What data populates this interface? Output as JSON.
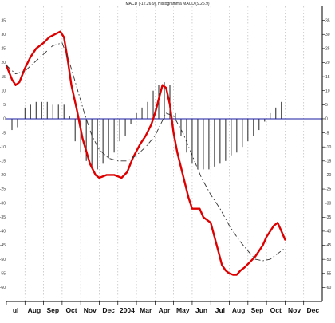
{
  "chart_data": {
    "type": "line",
    "title": "MACD (-12.26.9), Histogramma MACD (9.26.9)",
    "xlabel": "",
    "ylabel": "",
    "ylim": [
      -65,
      40
    ],
    "y_ticks": [
      35,
      30,
      25,
      20,
      15,
      10,
      5,
      0,
      -5,
      -10,
      -15,
      -20,
      -25,
      -30,
      -35,
      -40,
      -45,
      -50,
      -55,
      -60
    ],
    "x_ticks": [
      "Jul",
      "Aug",
      "Sep",
      "Oct",
      "Nov",
      "Dec",
      "2004",
      "Mar",
      "Apr",
      "May",
      "Jun",
      "Jul",
      "Aug",
      "Sep",
      "Oct",
      "Nov",
      "Dec"
    ],
    "x_tick_labels": [
      "ul",
      "Aug",
      "Sep",
      "Oct",
      "Nov",
      "Dec",
      "2004",
      "Mar",
      "Apr",
      "May",
      "Jun",
      "Jul",
      "Aug",
      "Sep",
      "Oct",
      "Nov",
      "Dec"
    ],
    "x_range": [
      0,
      17
    ],
    "grid": true,
    "zero_line": true,
    "colors": {
      "macd": "#dd0000",
      "signal": "#333333",
      "histogram": "#222222",
      "zero_line": "#1a1aa0",
      "grid": "#bbbbbb"
    },
    "series": [
      {
        "style": "solid-red",
        "x": [
          0,
          0.3,
          0.5,
          0.7,
          1,
          1.3,
          1.6,
          2,
          2.3,
          2.6,
          2.9,
          3.1,
          3.3,
          3.5,
          3.8,
          4.1,
          4.5,
          4.8,
          5,
          5.4,
          5.8,
          6.2,
          6.5,
          6.8,
          7.2,
          7.5,
          7.8,
          8,
          8.2,
          8.4,
          8.6,
          8.8,
          9,
          9.2,
          9.5,
          9.8,
          10,
          10.2,
          10.4,
          10.6,
          10.8,
          11,
          11.2,
          11.4,
          11.6,
          11.8,
          12,
          12.2,
          12.4,
          12.6,
          12.8,
          13.1,
          13.4,
          13.6,
          13.8,
          14,
          14.2,
          14.4,
          14.6,
          14.8,
          15
        ],
        "y": [
          19,
          14,
          12,
          13,
          18,
          22,
          25,
          27,
          29,
          30,
          31,
          29,
          21,
          12,
          3,
          -7,
          -16,
          -20,
          -21,
          -20,
          -20,
          -21,
          -19,
          -14,
          -9,
          -6,
          -2,
          2,
          7,
          12,
          11,
          5,
          -5,
          -12,
          -20,
          -28,
          -32,
          -32,
          -32,
          -35,
          -36,
          -37,
          -42,
          -47,
          -52,
          -54,
          -55,
          -55.5,
          -55.5,
          -54,
          -53,
          -51,
          -49,
          -47,
          -45,
          -42,
          -40,
          -38,
          -37,
          -40,
          -43
        ]
      },
      {
        "style": "dashed-black",
        "x": [
          0,
          0.5,
          1,
          1.5,
          2,
          2.5,
          3,
          3.4,
          3.8,
          4.2,
          4.6,
          5,
          5.5,
          6,
          6.5,
          7,
          7.5,
          8,
          8.3,
          8.6,
          9,
          9.5,
          10,
          10.5,
          11,
          11.5,
          12,
          12.5,
          13,
          13.4,
          13.8,
          14.2,
          14.6,
          15
        ],
        "y": [
          19,
          16,
          17,
          20,
          23,
          26,
          27,
          20,
          11,
          2,
          -6,
          -11,
          -14,
          -15,
          -15,
          -13,
          -10,
          -6,
          -2,
          2,
          1,
          -5,
          -13,
          -21,
          -27,
          -32,
          -38,
          -43,
          -47,
          -50,
          -50.5,
          -50,
          -48,
          -46
        ]
      }
    ],
    "histogram": {
      "x": [
        0.3,
        0.6,
        1.0,
        1.3,
        1.6,
        1.9,
        2.2,
        2.5,
        2.8,
        3.1,
        3.4,
        3.7,
        4.0,
        4.3,
        4.6,
        4.9,
        5.2,
        5.5,
        5.8,
        6.1,
        6.4,
        6.7,
        7.0,
        7.3,
        7.6,
        7.9,
        8.2,
        8.5,
        8.8,
        9.1,
        9.4,
        9.7,
        10.0,
        10.3,
        10.6,
        10.9,
        11.2,
        11.5,
        11.8,
        12.1,
        12.4,
        12.7,
        13.0,
        13.3,
        13.6,
        13.9,
        14.2,
        14.5,
        14.8
      ],
      "y": [
        -4,
        -3,
        4,
        5,
        6,
        6,
        6,
        5,
        5,
        5,
        1,
        -8,
        -12,
        -15,
        -17,
        -18,
        -16,
        -14,
        -12,
        -8,
        -6,
        -2,
        2,
        4,
        6,
        10,
        12,
        13,
        12,
        2,
        -6,
        -12,
        -16,
        -18,
        -18,
        -18,
        -17,
        -16,
        -15,
        -13,
        -12,
        -10,
        -8,
        -6,
        -4,
        -1,
        2,
        4,
        6
      ]
    }
  }
}
